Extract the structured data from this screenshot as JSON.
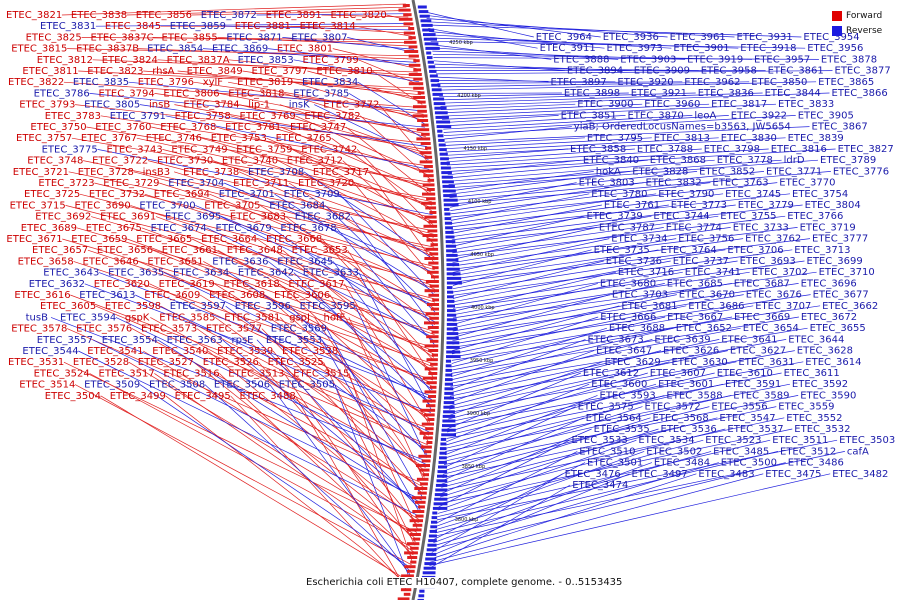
{
  "legend": [
    {
      "label": "Forward",
      "color": "#e00000"
    },
    {
      "label": "Reverse",
      "color": "#1a1ae0"
    }
  ],
  "caption": "Escherichia coli ETEC H10407, complete genome. - 0..5153435",
  "colors": {
    "forward": "#e02020",
    "reverse": "#2222dd",
    "backbone": "#666666"
  },
  "ticks": [
    "4250 kbp",
    "4200 kbp",
    "4150 kbp",
    "4100 kbp",
    "4050 kbp",
    "4000 kbp",
    "3950 kbp",
    "3900 kbp",
    "3850 kbp",
    "3800 kbp"
  ],
  "left_labels": [
    {
      "t": "ETEC_3821",
      "s": "f"
    },
    {
      "t": "ETEC_3838",
      "s": "f"
    },
    {
      "t": "ETEC_3856",
      "s": "f"
    },
    {
      "t": "ETEC_3872",
      "s": "r"
    },
    {
      "t": "ETEC_3891",
      "s": "f"
    },
    {
      "t": "ETEC_3820",
      "s": "f"
    },
    {
      "t": "ETEC_3831",
      "s": "r"
    },
    {
      "t": "ETEC_3845",
      "s": "f"
    },
    {
      "t": "ETEC_3859",
      "s": "r"
    },
    {
      "t": "ETEC_3881",
      "s": "f"
    },
    {
      "t": "ETEC_3814",
      "s": "f"
    },
    {
      "t": "ETEC_3825",
      "s": "f"
    },
    {
      "t": "ETEC_3837C",
      "s": "f"
    },
    {
      "t": "ETEC_3855",
      "s": "f"
    },
    {
      "t": "ETEC_3871",
      "s": "r"
    },
    {
      "t": "ETEC_3807",
      "s": "r"
    },
    {
      "t": "ETEC_3815",
      "s": "f"
    },
    {
      "t": "ETEC_3837B",
      "s": "f"
    },
    {
      "t": "ETEC_3854",
      "s": "r"
    },
    {
      "t": "ETEC_3869",
      "s": "r"
    },
    {
      "t": "ETEC_3801",
      "s": "f"
    },
    {
      "t": "ETEC_3812",
      "s": "f"
    },
    {
      "t": "ETEC_3824",
      "s": "f"
    },
    {
      "t": "ETEC_3837A",
      "s": "f"
    },
    {
      "t": "ETEC_3853",
      "s": "r"
    },
    {
      "t": "ETEC_3799",
      "s": "f"
    },
    {
      "t": "ETEC_3811",
      "s": "f"
    },
    {
      "t": "ETEC_3823",
      "s": "f"
    },
    {
      "t": "rhsA",
      "s": "f"
    },
    {
      "t": "ETEC_3849",
      "s": "f"
    },
    {
      "t": "ETEC_3797",
      "s": "f"
    },
    {
      "t": "ETEC_3810",
      "s": "f"
    },
    {
      "t": "ETEC_3822",
      "s": "f"
    },
    {
      "t": "ETEC_3835",
      "s": "r"
    },
    {
      "t": "ETEC_3796",
      "s": "f"
    },
    {
      "t": "xylF",
      "s": "f"
    },
    {
      "t": "ETEC_3819",
      "s": "f"
    },
    {
      "t": "ETEC_3834",
      "s": "r"
    },
    {
      "t": "ETEC_3786",
      "s": "r"
    },
    {
      "t": "ETEC_3794",
      "s": "f"
    },
    {
      "t": "ETEC_3806",
      "s": "f"
    },
    {
      "t": "ETEC_3818",
      "s": "f"
    },
    {
      "t": "ETEC_3785",
      "s": "r"
    },
    {
      "t": "ETEC_3793",
      "s": "f"
    },
    {
      "t": "ETEC_3805",
      "s": "r"
    },
    {
      "t": "insB",
      "s": "f"
    },
    {
      "t": "ETEC_3784",
      "s": "f"
    },
    {
      "t": "lip-1",
      "s": "f"
    },
    {
      "t": "insK",
      "s": "r"
    },
    {
      "t": "ETEC_3772",
      "s": "f"
    },
    {
      "t": "ETEC_3783",
      "s": "f"
    },
    {
      "t": "ETEC_3791",
      "s": "r"
    },
    {
      "t": "ETEC_3758",
      "s": "f"
    },
    {
      "t": "ETEC_3769",
      "s": "f"
    },
    {
      "t": "ETEC_3782",
      "s": "f"
    },
    {
      "t": "ETEC_3750",
      "s": "f"
    },
    {
      "t": "ETEC_3760",
      "s": "f"
    },
    {
      "t": "ETEC_3768",
      "s": "f"
    },
    {
      "t": "ETEC_3781",
      "s": "f"
    },
    {
      "t": "ETEC_3747",
      "s": "f"
    },
    {
      "t": "ETEC_3757",
      "s": "f"
    },
    {
      "t": "ETEC_3767",
      "s": "f"
    },
    {
      "t": "ETEC_3746",
      "s": "f"
    },
    {
      "t": "ETEC_3753",
      "s": "f"
    },
    {
      "t": "ETEC_3765",
      "s": "f"
    },
    {
      "t": "ETEC_3775",
      "s": "r"
    },
    {
      "t": "ETEC_3743",
      "s": "f"
    },
    {
      "t": "ETEC_3749",
      "s": "f"
    },
    {
      "t": "ETEC_3759",
      "s": "f"
    },
    {
      "t": "ETEC_3742",
      "s": "f"
    },
    {
      "t": "ETEC_3748",
      "s": "f"
    },
    {
      "t": "ETEC_3722",
      "s": "f"
    },
    {
      "t": "ETEC_3730",
      "s": "f"
    },
    {
      "t": "ETEC_3740",
      "s": "f"
    },
    {
      "t": "ETEC_3712",
      "s": "f"
    },
    {
      "t": "ETEC_3721",
      "s": "f"
    },
    {
      "t": "ETEC_3728",
      "s": "f"
    },
    {
      "t": "insB3",
      "s": "f"
    },
    {
      "t": "ETEC_3738",
      "s": "f"
    },
    {
      "t": "ETEC_3708",
      "s": "r"
    },
    {
      "t": "ETEC_3717",
      "s": "f"
    },
    {
      "t": "ETEC_3723",
      "s": "f"
    },
    {
      "t": "ETEC_3729",
      "s": "f"
    },
    {
      "t": "ETEC_3704",
      "s": "r"
    },
    {
      "t": "ETEC_3711",
      "s": "f"
    },
    {
      "t": "ETEC_3720",
      "s": "f"
    },
    {
      "t": "ETEC_3725",
      "s": "f"
    },
    {
      "t": "ETEC_3732",
      "s": "f"
    },
    {
      "t": "ETEC_3694",
      "s": "f"
    },
    {
      "t": "ETEC_3701",
      "s": "r"
    },
    {
      "t": "ETEC_3709",
      "s": "r"
    },
    {
      "t": "ETEC_3715",
      "s": "f"
    },
    {
      "t": "ETEC_3690",
      "s": "f"
    },
    {
      "t": "ETEC_3700",
      "s": "r"
    },
    {
      "t": "ETEC_3705",
      "s": "f"
    },
    {
      "t": "ETEC_3684",
      "s": "r"
    },
    {
      "t": "ETEC_3692",
      "s": "f"
    },
    {
      "t": "ETEC_3691",
      "s": "f"
    },
    {
      "t": "ETEC_3695",
      "s": "r"
    },
    {
      "t": "ETEC_3683",
      "s": "f"
    },
    {
      "t": "ETEC_3682",
      "s": "r"
    },
    {
      "t": "ETEC_3689",
      "s": "f"
    },
    {
      "t": "ETEC_3675",
      "s": "f"
    },
    {
      "t": "ETEC_3674",
      "s": "r"
    },
    {
      "t": "ETEC_3679",
      "s": "r"
    },
    {
      "t": "ETEC_3678",
      "s": "r"
    },
    {
      "t": "ETEC_3671",
      "s": "f"
    },
    {
      "t": "ETEC_3659",
      "s": "f"
    },
    {
      "t": "ETEC_3665",
      "s": "f"
    },
    {
      "t": "ETEC_3664",
      "s": "f"
    },
    {
      "t": "ETEC_3668",
      "s": "f"
    },
    {
      "t": "ETEC_3657",
      "s": "f"
    },
    {
      "t": "ETEC_3656",
      "s": "f"
    },
    {
      "t": "ETEC_3661",
      "s": "f"
    },
    {
      "t": "ETEC_3648",
      "s": "f"
    },
    {
      "t": "ETEC_3653",
      "s": "f"
    },
    {
      "t": "ETEC_3658",
      "s": "f"
    },
    {
      "t": "ETEC_3646",
      "s": "f"
    },
    {
      "t": "ETEC_3651",
      "s": "f"
    },
    {
      "t": "ETEC_3636",
      "s": "r"
    },
    {
      "t": "ETEC_3645",
      "s": "r"
    },
    {
      "t": "ETEC_3643",
      "s": "r"
    },
    {
      "t": "ETEC_3635",
      "s": "r"
    },
    {
      "t": "ETEC_3634",
      "s": "r"
    },
    {
      "t": "ETEC_3642",
      "s": "r"
    },
    {
      "t": "ETEC_3633",
      "s": "r"
    },
    {
      "t": "ETEC_3632",
      "s": "r"
    },
    {
      "t": "ETEC_3620",
      "s": "f"
    },
    {
      "t": "ETEC_3619",
      "s": "f"
    },
    {
      "t": "ETEC_3618",
      "s": "f"
    },
    {
      "t": "ETEC_3617",
      "s": "f"
    },
    {
      "t": "ETEC_3616",
      "s": "f"
    },
    {
      "t": "ETEC_3613",
      "s": "r"
    },
    {
      "t": "ETEC_3609",
      "s": "f"
    },
    {
      "t": "ETEC_3608",
      "s": "f"
    },
    {
      "t": "ETEC_3606",
      "s": "f"
    },
    {
      "t": "ETEC_3605",
      "s": "f"
    },
    {
      "t": "ETEC_3598",
      "s": "f"
    },
    {
      "t": "ETEC_3597",
      "s": "r"
    },
    {
      "t": "ETEC_3596",
      "s": "r"
    },
    {
      "t": "ETEC_3595",
      "s": "r"
    },
    {
      "t": "tusB",
      "s": "r"
    },
    {
      "t": "ETEC_3594",
      "s": "r"
    },
    {
      "t": "gspK",
      "s": "f"
    },
    {
      "t": "ETEC_3585",
      "s": "f"
    },
    {
      "t": "ETEC_3581",
      "s": "f"
    },
    {
      "t": "gspJ",
      "s": "f"
    },
    {
      "t": "hofF",
      "s": "f"
    },
    {
      "t": "ETEC_3578",
      "s": "f"
    },
    {
      "t": "ETEC_3576",
      "s": "f"
    },
    {
      "t": "ETEC_3573",
      "s": "f"
    },
    {
      "t": "ETEC_3577",
      "s": "f"
    },
    {
      "t": "ETEC_3569",
      "s": "r"
    },
    {
      "t": "ETEC_3557",
      "s": "r"
    },
    {
      "t": "ETEC_3554",
      "s": "r"
    },
    {
      "t": "ETEC_3563",
      "s": "r"
    },
    {
      "t": "rpsE",
      "s": "r"
    },
    {
      "t": "ETEC_3553",
      "s": "r"
    },
    {
      "t": "ETEC_3544",
      "s": "r"
    },
    {
      "t": "ETEC_3541",
      "s": "f"
    },
    {
      "t": "ETEC_3540",
      "s": "f"
    },
    {
      "t": "ETEC_3539",
      "s": "f"
    },
    {
      "t": "ETEC_3538",
      "s": "f"
    },
    {
      "t": "ETEC_3531",
      "s": "f"
    },
    {
      "t": "ETEC_3528",
      "s": "f"
    },
    {
      "t": "ETEC_3527",
      "s": "f"
    },
    {
      "t": "ETEC_3526",
      "s": "f"
    },
    {
      "t": "ETEC_3525",
      "s": "f"
    },
    {
      "t": "ETEC_3524",
      "s": "f"
    },
    {
      "t": "ETEC_3517",
      "s": "f"
    },
    {
      "t": "ETEC_3516",
      "s": "f"
    },
    {
      "t": "ETEC_3513",
      "s": "f"
    },
    {
      "t": "ETEC_3515",
      "s": "f"
    },
    {
      "t": "ETEC_3514",
      "s": "f"
    },
    {
      "t": "ETEC_3509",
      "s": "r"
    },
    {
      "t": "ETEC_3508",
      "s": "r"
    },
    {
      "t": "ETEC_3506",
      "s": "r"
    },
    {
      "t": "ETEC_3505",
      "s": "r"
    },
    {
      "t": "ETEC_3504",
      "s": "f"
    },
    {
      "t": "ETEC_3499",
      "s": "f"
    },
    {
      "t": "ETEC_3495",
      "s": "f"
    },
    {
      "t": "ETEC_3488",
      "s": "f"
    }
  ],
  "right_labels": [
    "ETEC_3964",
    "ETEC_3936",
    "ETEC_3961",
    "ETEC_3931",
    "ETEC_3954",
    "ETEC_3911",
    "ETEC_3973",
    "ETEC_3901",
    "ETEC_3918",
    "ETEC_3956",
    "ETEC_3888",
    "ETEC_3903",
    "ETEC_3919",
    "ETEC_3957",
    "ETEC_3878",
    "ETEC_3894",
    "ETEC_3909",
    "ETEC_3958",
    "ETEC_3861",
    "ETEC_3877",
    "ETEC_3897",
    "ETEC_3920",
    "ETEC_3962",
    "ETEC_3850",
    "ETEC_3865",
    "ETEC_3898",
    "ETEC_3921",
    "ETEC_3836",
    "ETEC_3844",
    "ETEC_3866",
    "ETEC_3900",
    "ETEC_3960",
    "ETEC_3817",
    "ETEC_3833",
    "ETEC_3851",
    "ETEC_3870",
    "leoA",
    "ETEC_3922",
    "ETEC_3905",
    "yiaB; OrderedLocusNames=b3563, JW5654",
    "ETEC_3867",
    "ETEC_3795",
    "ETEC_3813",
    "ETEC_3830",
    "ETEC_3839",
    "ETEC_3858",
    "ETEC_3788",
    "ETEC_3798",
    "ETEC_3816",
    "ETEC_3827",
    "ETEC_3840",
    "ETEC_3868",
    "ETEC_3778",
    "ldrD",
    "ETEC_3789",
    "hokA",
    "ETEC_3828",
    "ETEC_3852",
    "ETEC_3771",
    "ETEC_3776",
    "ETEC_3803",
    "ETEC_3832",
    "ETEC_3763",
    "ETEC_3770",
    "ETEC_3780",
    "ETEC_3790",
    "ETEC_3745",
    "ETEC_3754",
    "ETEC_3761",
    "ETEC_3773",
    "ETEC_3779",
    "ETEC_3804",
    "ETEC_3739",
    "ETEC_3744",
    "ETEC_3755",
    "ETEC_3766",
    "ETEC_3787",
    "ETEC_3774",
    "ETEC_3733",
    "ETEC_3719",
    "ETEC_3734",
    "ETEC_3756",
    "ETEC_3762",
    "ETEC_3777",
    "ETEC_3735",
    "ETEC_3764",
    "ETEC_3706",
    "ETEC_3713",
    "ETEC_3736",
    "ETEC_3737",
    "ETEC_3693",
    "ETEC_3699",
    "ETEC_3716",
    "ETEC_3741",
    "ETEC_3702",
    "ETEC_3710",
    "ETEC_3680",
    "ETEC_3685",
    "ETEC_3687",
    "ETEC_3696",
    "ETEC_3703",
    "ETEC_3670",
    "ETEC_3676",
    "ETEC_3677",
    "ETEC_3681",
    "ETEC_3686",
    "ETEC_3707",
    "ETEC_3662",
    "ETEC_3666",
    "ETEC_3667",
    "ETEC_3669",
    "ETEC_3672",
    "ETEC_3688",
    "ETEC_3652",
    "ETEC_3654",
    "ETEC_3655",
    "ETEC_3673",
    "ETEC_3639",
    "ETEC_3641",
    "ETEC_3644",
    "ETEC_3647",
    "ETEC_3626",
    "ETEC_3627",
    "ETEC_3628",
    "ETEC_3629",
    "ETEC_3630",
    "ETEC_3631",
    "ETEC_3614",
    "ETEC_3612",
    "ETEC_3607",
    "ETEC_3610",
    "ETEC_3611",
    "ETEC_3600",
    "ETEC_3601",
    "ETEC_3591",
    "ETEC_3592",
    "ETEC_3593",
    "ETEC_3588",
    "ETEC_3589",
    "ETEC_3590",
    "ETEC_3575",
    "ETEC_3572",
    "ETEC_3556",
    "ETEC_3559",
    "ETEC_3564",
    "ETEC_3568",
    "ETEC_3547",
    "ETEC_3552",
    "ETEC_3535",
    "ETEC_3536",
    "ETEC_3537",
    "ETEC_3532",
    "ETEC_3533",
    "ETEC_3534",
    "ETEC_3523",
    "ETEC_3511",
    "ETEC_3503",
    "ETEC_3510",
    "ETEC_3502",
    "ETEC_3485",
    "ETEC_3512",
    "cafA",
    "ETEC_3501",
    "ETEC_3484",
    "ETEC_3500",
    "ETEC_3486",
    "ETEC_3476",
    "ETEC_3497",
    "ETEC_3483",
    "ETEC_3475",
    "ETEC_3482",
    "ETEC_3474"
  ]
}
